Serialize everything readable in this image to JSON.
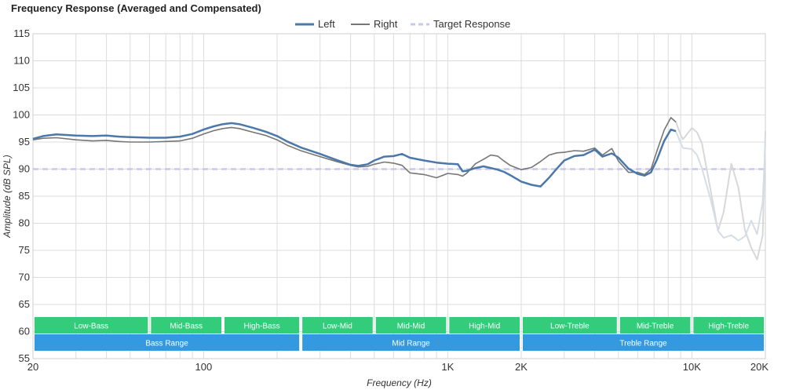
{
  "chart_data": {
    "type": "line",
    "title": "Frequency Response (Averaged and Compensated)",
    "xlabel": "Frequency (Hz)",
    "ylabel": "Amplitude (dB SPL)",
    "x_scale": "log",
    "xlim": [
      20,
      20000
    ],
    "ylim": [
      55,
      115
    ],
    "grid": true,
    "legend_position": "top-center",
    "x_ticks": [
      {
        "value": 20,
        "label": "20"
      },
      {
        "value": 100,
        "label": "100"
      },
      {
        "value": 1000,
        "label": "1K"
      },
      {
        "value": 2000,
        "label": "2K"
      },
      {
        "value": 10000,
        "label": "10K"
      },
      {
        "value": 20000,
        "label": "20K"
      }
    ],
    "y_ticks": [
      55,
      60,
      65,
      70,
      75,
      80,
      85,
      90,
      95,
      100,
      105,
      110,
      115
    ],
    "series": [
      {
        "name": "Left",
        "color": "#4a78aa",
        "faded_color": "#d6dde6",
        "faded_from": 8600,
        "style": "solid",
        "points": [
          [
            20,
            95.6
          ],
          [
            22,
            96.1
          ],
          [
            25,
            96.4
          ],
          [
            30,
            96.2
          ],
          [
            35,
            96.1
          ],
          [
            40,
            96.2
          ],
          [
            45,
            96.0
          ],
          [
            50,
            95.9
          ],
          [
            60,
            95.8
          ],
          [
            70,
            95.8
          ],
          [
            80,
            96.0
          ],
          [
            90,
            96.5
          ],
          [
            100,
            97.3
          ],
          [
            110,
            97.9
          ],
          [
            120,
            98.3
          ],
          [
            130,
            98.5
          ],
          [
            140,
            98.3
          ],
          [
            160,
            97.6
          ],
          [
            180,
            96.9
          ],
          [
            200,
            96.1
          ],
          [
            220,
            95.1
          ],
          [
            250,
            94.0
          ],
          [
            300,
            92.8
          ],
          [
            350,
            91.7
          ],
          [
            400,
            90.8
          ],
          [
            430,
            90.6
          ],
          [
            470,
            90.9
          ],
          [
            500,
            91.6
          ],
          [
            550,
            92.3
          ],
          [
            600,
            92.4
          ],
          [
            650,
            92.8
          ],
          [
            700,
            92.1
          ],
          [
            800,
            91.6
          ],
          [
            900,
            91.2
          ],
          [
            1000,
            91.0
          ],
          [
            1100,
            90.9
          ],
          [
            1150,
            89.6
          ],
          [
            1200,
            89.7
          ],
          [
            1300,
            90.2
          ],
          [
            1400,
            90.5
          ],
          [
            1500,
            90.2
          ],
          [
            1600,
            89.9
          ],
          [
            1700,
            89.5
          ],
          [
            1800,
            88.9
          ],
          [
            2000,
            87.7
          ],
          [
            2200,
            87.1
          ],
          [
            2400,
            86.8
          ],
          [
            2600,
            88.4
          ],
          [
            2800,
            90.1
          ],
          [
            3000,
            91.6
          ],
          [
            3300,
            92.4
          ],
          [
            3600,
            92.6
          ],
          [
            4000,
            93.6
          ],
          [
            4300,
            92.3
          ],
          [
            4700,
            92.9
          ],
          [
            5000,
            92.1
          ],
          [
            5500,
            90.1
          ],
          [
            6000,
            89.1
          ],
          [
            6400,
            88.8
          ],
          [
            6800,
            89.4
          ],
          [
            7200,
            91.8
          ],
          [
            7700,
            95.2
          ],
          [
            8200,
            97.3
          ],
          [
            8600,
            97.0
          ],
          [
            9000,
            94.8
          ],
          [
            9200,
            93.9
          ],
          [
            10000,
            93.7
          ],
          [
            10500,
            92.6
          ],
          [
            11000,
            90.1
          ],
          [
            12000,
            84.0
          ],
          [
            12800,
            78.6
          ],
          [
            13500,
            77.3
          ],
          [
            14500,
            77.8
          ],
          [
            15500,
            76.8
          ],
          [
            16500,
            77.6
          ],
          [
            17500,
            80.5
          ],
          [
            18500,
            78.0
          ],
          [
            19500,
            84.0
          ],
          [
            20000,
            95.0
          ]
        ]
      },
      {
        "name": "Right",
        "color": "#767676",
        "faded_color": "#d8d8d8",
        "faded_from": 8600,
        "style": "solid",
        "points": [
          [
            20,
            95.4
          ],
          [
            22,
            95.7
          ],
          [
            25,
            95.8
          ],
          [
            30,
            95.4
          ],
          [
            35,
            95.2
          ],
          [
            40,
            95.3
          ],
          [
            45,
            95.1
          ],
          [
            50,
            95.0
          ],
          [
            60,
            95.0
          ],
          [
            70,
            95.1
          ],
          [
            80,
            95.2
          ],
          [
            90,
            95.7
          ],
          [
            100,
            96.5
          ],
          [
            110,
            97.1
          ],
          [
            120,
            97.5
          ],
          [
            130,
            97.7
          ],
          [
            140,
            97.5
          ],
          [
            160,
            96.8
          ],
          [
            180,
            96.2
          ],
          [
            200,
            95.4
          ],
          [
            220,
            94.4
          ],
          [
            250,
            93.4
          ],
          [
            300,
            92.3
          ],
          [
            350,
            91.4
          ],
          [
            400,
            90.7
          ],
          [
            430,
            90.4
          ],
          [
            470,
            90.5
          ],
          [
            500,
            90.9
          ],
          [
            550,
            91.3
          ],
          [
            600,
            91.1
          ],
          [
            650,
            90.7
          ],
          [
            700,
            89.3
          ],
          [
            800,
            89.0
          ],
          [
            900,
            88.4
          ],
          [
            1000,
            89.2
          ],
          [
            1100,
            89.0
          ],
          [
            1150,
            88.7
          ],
          [
            1200,
            89.3
          ],
          [
            1300,
            91.0
          ],
          [
            1400,
            91.8
          ],
          [
            1500,
            92.6
          ],
          [
            1600,
            92.4
          ],
          [
            1700,
            91.5
          ],
          [
            1800,
            90.7
          ],
          [
            2000,
            89.9
          ],
          [
            2200,
            90.3
          ],
          [
            2400,
            91.4
          ],
          [
            2600,
            92.6
          ],
          [
            2800,
            93.0
          ],
          [
            3000,
            93.1
          ],
          [
            3300,
            93.4
          ],
          [
            3600,
            93.3
          ],
          [
            4000,
            93.9
          ],
          [
            4300,
            92.6
          ],
          [
            4700,
            93.8
          ],
          [
            5000,
            91.5
          ],
          [
            5500,
            89.4
          ],
          [
            6000,
            89.4
          ],
          [
            6400,
            89.0
          ],
          [
            6800,
            90.0
          ],
          [
            7200,
            93.4
          ],
          [
            7700,
            97.2
          ],
          [
            8200,
            99.5
          ],
          [
            8600,
            98.7
          ],
          [
            9000,
            96.3
          ],
          [
            9200,
            95.5
          ],
          [
            10000,
            97.6
          ],
          [
            10500,
            96.8
          ],
          [
            11000,
            94.7
          ],
          [
            12000,
            85.5
          ],
          [
            12800,
            78.6
          ],
          [
            13500,
            82.1
          ],
          [
            14500,
            91.0
          ],
          [
            15500,
            86.6
          ],
          [
            16500,
            78.7
          ],
          [
            17500,
            75.5
          ],
          [
            18500,
            73.3
          ],
          [
            19500,
            77.8
          ],
          [
            20000,
            97.0
          ]
        ]
      },
      {
        "name": "Target Response",
        "color": "#c5c8f0",
        "style": "dashed",
        "points": [
          [
            20,
            90
          ],
          [
            20000,
            90
          ]
        ]
      }
    ],
    "annotations": {
      "bands": [
        {
          "label": "Low-Bass",
          "from": 20,
          "to": 60,
          "color": "#33cc7a"
        },
        {
          "label": "Mid-Bass",
          "from": 60,
          "to": 120,
          "color": "#33cc7a"
        },
        {
          "label": "High-Bass",
          "from": 120,
          "to": 250,
          "color": "#33cc7a"
        },
        {
          "label": "Low-Mid",
          "from": 250,
          "to": 500,
          "color": "#33cc7a"
        },
        {
          "label": "Mid-Mid",
          "from": 500,
          "to": 1000,
          "color": "#33cc7a"
        },
        {
          "label": "High-Mid",
          "from": 1000,
          "to": 2000,
          "color": "#33cc7a"
        },
        {
          "label": "Low-Treble",
          "from": 2000,
          "to": 5000,
          "color": "#33cc7a"
        },
        {
          "label": "Mid-Treble",
          "from": 5000,
          "to": 10000,
          "color": "#33cc7a"
        },
        {
          "label": "High-Treble",
          "from": 10000,
          "to": 20000,
          "color": "#33cc7a"
        }
      ],
      "ranges": [
        {
          "label": "Bass Range",
          "from": 20,
          "to": 250,
          "color": "#3399e0"
        },
        {
          "label": "Mid Range",
          "from": 250,
          "to": 2000,
          "color": "#3399e0"
        },
        {
          "label": "Treble Range",
          "from": 2000,
          "to": 20000,
          "color": "#3399e0"
        }
      ]
    }
  }
}
